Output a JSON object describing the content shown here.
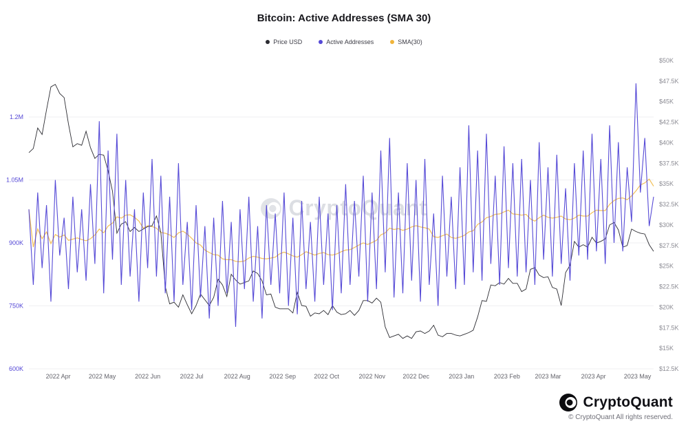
{
  "title": "Bitcoin: Active Addresses (SMA 30)",
  "watermark": "CryptoQuant",
  "legend": [
    {
      "label": "Price USD",
      "color": "#2b2b31"
    },
    {
      "label": "Active Addresses",
      "color": "#5549d6"
    },
    {
      "label": "SMA(30)",
      "color": "#f0b43a"
    }
  ],
  "footer": {
    "brand": "CryptoQuant",
    "copyright": "© CryptoQuant All rights reserved."
  },
  "chart_data": {
    "type": "line",
    "title": "Bitcoin: Active Addresses (SMA 30)",
    "grid": "horizontal",
    "legend_position": "top-center",
    "x_domain_days": 426,
    "x_ticks": [
      {
        "label": "2022 Apr",
        "day": 20
      },
      {
        "label": "2022 May",
        "day": 50
      },
      {
        "label": "2022 Jun",
        "day": 81
      },
      {
        "label": "2022 Jul",
        "day": 111
      },
      {
        "label": "2022 Aug",
        "day": 142
      },
      {
        "label": "2022 Sep",
        "day": 173
      },
      {
        "label": "2022 Oct",
        "day": 203
      },
      {
        "label": "2022 Nov",
        "day": 234
      },
      {
        "label": "2022 Dec",
        "day": 264
      },
      {
        "label": "2023 Jan",
        "day": 295
      },
      {
        "label": "2023 Feb",
        "day": 326
      },
      {
        "label": "2023 Mar",
        "day": 354
      },
      {
        "label": "2023 Apr",
        "day": 385
      },
      {
        "label": "2023 May",
        "day": 415
      }
    ],
    "left_axis": {
      "label": "Active Addresses",
      "unit": "thousand addresses",
      "color": "#5549d6",
      "ticks": [
        {
          "label": "600K",
          "value": 600
        },
        {
          "label": "750K",
          "value": 750
        },
        {
          "label": "900K",
          "value": 900
        },
        {
          "label": "1.05M",
          "value": 1050
        },
        {
          "label": "1.2M",
          "value": 1200
        }
      ]
    },
    "right_axis": {
      "label": "Price USD",
      "unit": "thousand USD",
      "color": "#8c8c94",
      "ticks": [
        {
          "label": "$12.5K",
          "value": 12.5
        },
        {
          "label": "$15K",
          "value": 15
        },
        {
          "label": "$17.5K",
          "value": 17.5
        },
        {
          "label": "$20K",
          "value": 20
        },
        {
          "label": "$22.5K",
          "value": 22.5
        },
        {
          "label": "$25K",
          "value": 25
        },
        {
          "label": "$27.5K",
          "value": 27.5
        },
        {
          "label": "$30K",
          "value": 30
        },
        {
          "label": "$32.5K",
          "value": 32.5
        },
        {
          "label": "$35K",
          "value": 35
        },
        {
          "label": "$37.5K",
          "value": 37.5
        },
        {
          "label": "$40K",
          "value": 40
        },
        {
          "label": "$42.5K",
          "value": 42.5
        },
        {
          "label": "$45K",
          "value": 45
        },
        {
          "label": "$47.5K",
          "value": 47.5
        },
        {
          "label": "$50K",
          "value": 50
        }
      ]
    },
    "series": [
      {
        "name": "Price USD",
        "axis": "right",
        "color": "#2b2b31",
        "step_days": 3,
        "unit": "thousand USD",
        "values": [
          38.8,
          39.3,
          41.8,
          41.0,
          44.0,
          46.8,
          47.1,
          46.0,
          45.5,
          42.3,
          39.5,
          39.9,
          39.7,
          41.4,
          39.4,
          38.1,
          38.6,
          38.5,
          36.6,
          34.1,
          29.0,
          30.1,
          30.4,
          29.2,
          29.7,
          29.2,
          29.5,
          29.8,
          29.9,
          31.1,
          29.1,
          22.5,
          20.4,
          20.6,
          20.0,
          21.5,
          20.3,
          19.2,
          20.2,
          21.6,
          20.9,
          20.2,
          21.2,
          23.4,
          22.7,
          21.3,
          24.0,
          23.3,
          22.8,
          23.0,
          23.2,
          24.4,
          24.1,
          23.2,
          21.5,
          21.6,
          20.0,
          19.8,
          19.8,
          19.8,
          19.3,
          21.8,
          20.2,
          20.1,
          18.9,
          19.3,
          19.2,
          19.6,
          19.1,
          20.2,
          19.4,
          19.1,
          19.2,
          19.6,
          19.0,
          19.6,
          20.8,
          20.8,
          20.5,
          21.1,
          20.6,
          17.6,
          16.3,
          16.5,
          16.7,
          16.2,
          16.5,
          16.2,
          17.0,
          17.1,
          16.8,
          17.1,
          17.8,
          16.6,
          16.4,
          16.8,
          16.8,
          16.6,
          16.5,
          16.7,
          16.9,
          17.2,
          18.8,
          20.8,
          20.7,
          22.7,
          22.6,
          23.0,
          22.8,
          23.5,
          22.9,
          22.9,
          21.9,
          22.2,
          24.6,
          24.8,
          23.9,
          23.6,
          23.7,
          22.4,
          22.2,
          20.2,
          24.2,
          25.1,
          28.0,
          27.3,
          27.6,
          27.3,
          28.5,
          27.8,
          28.0,
          28.3,
          30.0,
          30.3,
          29.4,
          27.3,
          27.5,
          29.5,
          29.2,
          29.0,
          28.9,
          27.6,
          26.8
        ]
      },
      {
        "name": "Active Addresses",
        "axis": "left",
        "color": "#5549d6",
        "step_days": 3,
        "unit": "thousand addresses",
        "values": [
          980,
          800,
          1020,
          840,
          990,
          760,
          1050,
          870,
          960,
          790,
          1010,
          830,
          980,
          810,
          1040,
          850,
          1190,
          780,
          1120,
          860,
          1160,
          800,
          1050,
          820,
          980,
          760,
          1020,
          840,
          1100,
          820,
          1060,
          780,
          1010,
          760,
          1090,
          800,
          950,
          740,
          990,
          770,
          940,
          720,
          960,
          750,
          1000,
          780,
          950,
          700,
          980,
          790,
          1010,
          760,
          940,
          720,
          990,
          800,
          970,
          780,
          1020,
          750,
          960,
          730,
          1000,
          790,
          950,
          760,
          1010,
          800,
          970,
          740,
          990,
          780,
          1040,
          800,
          1000,
          820,
          1060,
          760,
          1020,
          790,
          1120,
          830,
          1150,
          770,
          1020,
          780,
          1090,
          810,
          1050,
          760,
          1100,
          800,
          970,
          750,
          1060,
          820,
          1010,
          790,
          1080,
          800,
          1180,
          830,
          1120,
          810,
          1160,
          850,
          1060,
          800,
          1130,
          840,
          1090,
          820,
          1100,
          830,
          1050,
          800,
          1140,
          860,
          1080,
          820,
          1110,
          850,
          1030,
          810,
          1090,
          870,
          1120,
          860,
          1160,
          880,
          1100,
          850,
          1180,
          900,
          1140,
          880,
          1080,
          950,
          1280,
          1020,
          1150,
          940,
          1010
        ]
      },
      {
        "name": "SMA(30)",
        "axis": "left",
        "color": "#f0b43a",
        "derived_from": "Active Addresses",
        "window_days": 30,
        "unit": "thousand addresses"
      }
    ]
  }
}
